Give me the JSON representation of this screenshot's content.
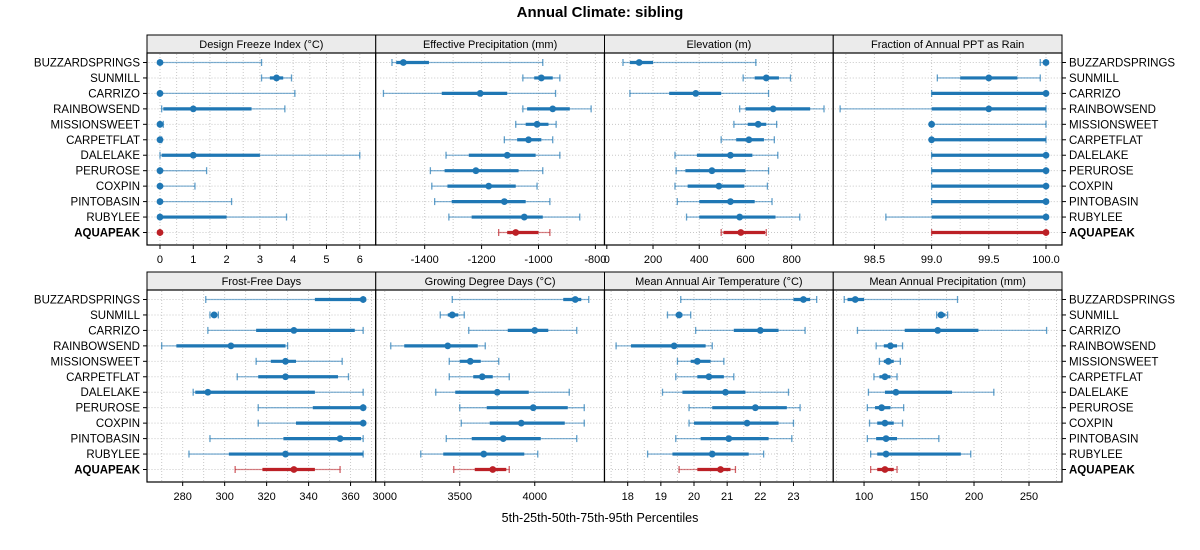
{
  "title": "Annual Climate: sibling",
  "caption": "5th-25th-50th-75th-95th Percentiles",
  "colors": {
    "series": "#1f77b4",
    "highlight": "#bc2026",
    "strip_bg": "#ebebeb",
    "border": "#000000",
    "grid": "#c8c8c8"
  },
  "sites": [
    {
      "name": "BUZZARDSPRINGS",
      "highlight": false
    },
    {
      "name": "SUNMILL",
      "highlight": false
    },
    {
      "name": "CARRIZO",
      "highlight": false
    },
    {
      "name": "RAINBOWSEND",
      "highlight": false
    },
    {
      "name": "MISSIONSWEET",
      "highlight": false
    },
    {
      "name": "CARPETFLAT",
      "highlight": false
    },
    {
      "name": "DALELAKE",
      "highlight": false
    },
    {
      "name": "PERUROSE",
      "highlight": false
    },
    {
      "name": "COXPIN",
      "highlight": false
    },
    {
      "name": "PINTOBASIN",
      "highlight": false
    },
    {
      "name": "RUBYLEE",
      "highlight": false
    },
    {
      "name": "AQUAPEAK",
      "highlight": true
    }
  ],
  "chart_data": {
    "type": "scatter",
    "variant": "percentile-dotplot-trellis",
    "percentiles": [
      5,
      25,
      50,
      75,
      95
    ],
    "legend_position": "bottom-caption",
    "grid": "dotted",
    "panels": [
      {
        "title": "Design Freeze Index (°C)",
        "slug": "design-freeze-index",
        "row": 0,
        "col": 0,
        "domain": [
          -0.39,
          6.48
        ],
        "minor_step": 0.5,
        "tick_values": [
          0,
          1,
          2,
          3,
          4,
          5,
          6
        ],
        "tick_labels": [
          "0",
          "1",
          "2",
          "3",
          "4",
          "5",
          "6"
        ],
        "values": [
          [
            0,
            0,
            0,
            0,
            3.05
          ],
          [
            3.05,
            3.3,
            3.5,
            3.7,
            3.95
          ],
          [
            0,
            0,
            0,
            0,
            4.05
          ],
          [
            0.05,
            0.1,
            1.0,
            2.75,
            3.75
          ],
          [
            0,
            0,
            0,
            0,
            0.1
          ],
          [
            0,
            0,
            0,
            0,
            0.05
          ],
          [
            0,
            0.05,
            1.0,
            3.0,
            6.0
          ],
          [
            0,
            0,
            0,
            0,
            1.4
          ],
          [
            0,
            0,
            0,
            0,
            1.05
          ],
          [
            0,
            0,
            0,
            0,
            2.15
          ],
          [
            0,
            0,
            0,
            2.0,
            3.8
          ],
          [
            0,
            0,
            0,
            0,
            0
          ]
        ]
      },
      {
        "title": "Effective Precipitation (mm)",
        "slug": "effective-precipitation",
        "row": 0,
        "col": 1,
        "domain": [
          -1572,
          -768
        ],
        "minor_step": 100,
        "tick_values": [
          -1400,
          -1200,
          -1000,
          -800
        ],
        "tick_labels": [
          "-1400",
          "-1200",
          "-1000",
          "-800"
        ],
        "values": [
          [
            -1515,
            -1500,
            -1475,
            -1385,
            -985
          ],
          [
            -1055,
            -1015,
            -990,
            -950,
            -925
          ],
          [
            -1545,
            -1340,
            -1205,
            -1110,
            -940
          ],
          [
            -1055,
            -1040,
            -950,
            -890,
            -815
          ],
          [
            -1080,
            -1045,
            -1005,
            -965,
            -938
          ],
          [
            -1120,
            -1075,
            -1035,
            -990,
            -950
          ],
          [
            -1325,
            -1245,
            -1110,
            -1010,
            -925
          ],
          [
            -1380,
            -1330,
            -1220,
            -1070,
            -985
          ],
          [
            -1375,
            -1320,
            -1175,
            -1080,
            -1005
          ],
          [
            -1365,
            -1305,
            -1120,
            -1045,
            -960
          ],
          [
            -1315,
            -1235,
            -1050,
            -985,
            -855
          ],
          [
            -1140,
            -1110,
            -1080,
            -1000,
            -960
          ]
        ]
      },
      {
        "title": "Elevation (m)",
        "slug": "elevation",
        "row": 0,
        "col": 2,
        "domain": [
          -10,
          980
        ],
        "minor_step": 100,
        "tick_values": [
          0,
          200,
          400,
          600,
          800
        ],
        "tick_labels": [
          "0",
          "200",
          "400",
          "600",
          "800"
        ],
        "values": [
          [
            70,
            100,
            140,
            200,
            645
          ],
          [
            590,
            640,
            690,
            745,
            795
          ],
          [
            100,
            270,
            385,
            495,
            700
          ],
          [
            575,
            600,
            720,
            880,
            940
          ],
          [
            550,
            610,
            655,
            690,
            735
          ],
          [
            495,
            560,
            615,
            680,
            725
          ],
          [
            295,
            390,
            535,
            630,
            740
          ],
          [
            300,
            340,
            455,
            600,
            700
          ],
          [
            295,
            350,
            485,
            595,
            695
          ],
          [
            305,
            400,
            535,
            640,
            715
          ],
          [
            345,
            400,
            575,
            730,
            835
          ],
          [
            495,
            505,
            580,
            685,
            690
          ]
        ]
      },
      {
        "title": "Fraction of Annual PPT as Rain",
        "slug": "fraction-ppt-as-rain",
        "row": 0,
        "col": 3,
        "domain": [
          98.14,
          100.14
        ],
        "minor_step": 0.25,
        "tick_values": [
          98.5,
          99.0,
          99.5,
          100.0
        ],
        "tick_labels": [
          "98.5",
          "99.0",
          "99.5",
          "100.0"
        ],
        "values": [
          [
            99.95,
            99.98,
            100,
            100,
            100
          ],
          [
            99.05,
            99.25,
            99.5,
            99.75,
            99.95
          ],
          [
            99.0,
            99.0,
            100,
            100,
            100
          ],
          [
            98.2,
            99.0,
            99.5,
            100,
            100
          ],
          [
            99.0,
            99.0,
            99.0,
            99.0,
            100
          ],
          [
            99.0,
            99.0,
            99.0,
            100,
            100
          ],
          [
            99.0,
            99.0,
            100,
            100,
            100
          ],
          [
            99.0,
            99.0,
            100,
            100,
            100
          ],
          [
            99.0,
            99.0,
            100,
            100,
            100
          ],
          [
            99.0,
            99.0,
            100,
            100,
            100
          ],
          [
            98.6,
            99.0,
            100,
            100,
            100
          ],
          [
            99.0,
            99.0,
            100,
            100,
            100
          ]
        ]
      },
      {
        "title": "Frost-Free Days",
        "slug": "frost-free-days",
        "row": 1,
        "col": 0,
        "domain": [
          263,
          372
        ],
        "minor_step": 10,
        "tick_values": [
          280,
          300,
          320,
          340,
          360
        ],
        "tick_labels": [
          "280",
          "300",
          "320",
          "340",
          "360"
        ],
        "values": [
          [
            291,
            343,
            366,
            366,
            366
          ],
          [
            293,
            294,
            295,
            296,
            297
          ],
          [
            292,
            315,
            333,
            362,
            366
          ],
          [
            270,
            277,
            303,
            329,
            330
          ],
          [
            315,
            322,
            329,
            334,
            356
          ],
          [
            306,
            316,
            329,
            354,
            359
          ],
          [
            285,
            286,
            292,
            343,
            366
          ],
          [
            316,
            342,
            366,
            366,
            366
          ],
          [
            316,
            334,
            366,
            366,
            366
          ],
          [
            293,
            328,
            355,
            365,
            366
          ],
          [
            283,
            302,
            329,
            366,
            366
          ],
          [
            305,
            318,
            333,
            343,
            355
          ]
        ]
      },
      {
        "title": "Growing Degree Days (°C)",
        "slug": "growing-degree-days",
        "row": 1,
        "col": 1,
        "domain": [
          2940,
          4465
        ],
        "minor_step": 250,
        "tick_values": [
          3000,
          3500,
          4000
        ],
        "tick_labels": [
          "3000",
          "3500",
          "4000"
        ],
        "values": [
          [
            3450,
            4190,
            4270,
            4310,
            4360
          ],
          [
            3370,
            3420,
            3450,
            3490,
            3530
          ],
          [
            3560,
            3820,
            4000,
            4090,
            4280
          ],
          [
            3040,
            3130,
            3420,
            3620,
            3670
          ],
          [
            3430,
            3500,
            3570,
            3640,
            3760
          ],
          [
            3430,
            3590,
            3650,
            3720,
            3830
          ],
          [
            3340,
            3470,
            3750,
            3960,
            4230
          ],
          [
            3500,
            3680,
            3990,
            4220,
            4330
          ],
          [
            3510,
            3700,
            3910,
            4200,
            4330
          ],
          [
            3410,
            3580,
            3790,
            4040,
            4280
          ],
          [
            3240,
            3390,
            3660,
            3930,
            4020
          ],
          [
            3460,
            3600,
            3720,
            3810,
            3830
          ]
        ]
      },
      {
        "title": "Mean Annual Air Temperature (°C)",
        "slug": "mean-annual-air-temperature",
        "row": 1,
        "col": 2,
        "domain": [
          17.3,
          24.2
        ],
        "minor_step": 0.5,
        "tick_values": [
          18,
          19,
          20,
          21,
          22,
          23
        ],
        "tick_labels": [
          "18",
          "19",
          "20",
          "21",
          "22",
          "23"
        ],
        "values": [
          [
            19.6,
            23.0,
            23.3,
            23.5,
            23.7
          ],
          [
            19.2,
            19.45,
            19.55,
            19.65,
            19.9
          ],
          [
            20.05,
            21.2,
            22.0,
            22.55,
            23.35
          ],
          [
            17.65,
            18.1,
            19.4,
            20.35,
            20.55
          ],
          [
            19.5,
            19.9,
            20.1,
            20.5,
            20.9
          ],
          [
            19.45,
            20.1,
            20.45,
            20.9,
            21.2
          ],
          [
            19.05,
            19.65,
            20.95,
            21.55,
            22.85
          ],
          [
            19.85,
            20.55,
            21.85,
            22.8,
            23.2
          ],
          [
            19.85,
            20.0,
            21.6,
            22.55,
            23.0
          ],
          [
            19.45,
            20.2,
            21.05,
            22.25,
            22.95
          ],
          [
            18.6,
            19.35,
            20.55,
            21.65,
            22.1
          ],
          [
            19.55,
            20.1,
            20.8,
            21.1,
            21.25
          ]
        ]
      },
      {
        "title": "Mean Annual Precipitation (mm)",
        "slug": "mean-annual-precipitation",
        "row": 1,
        "col": 3,
        "domain": [
          72,
          280
        ],
        "minor_step": 25,
        "tick_values": [
          100,
          150,
          200,
          250
        ],
        "tick_labels": [
          "100",
          "150",
          "200",
          "250"
        ],
        "values": [
          [
            82,
            85,
            92,
            100,
            185
          ],
          [
            166,
            168,
            170,
            174,
            176
          ],
          [
            94,
            137,
            167,
            204,
            266
          ],
          [
            111,
            118,
            124,
            130,
            135
          ],
          [
            114,
            118,
            122,
            127,
            133
          ],
          [
            109,
            114,
            119,
            124,
            130
          ],
          [
            104,
            119,
            129,
            180,
            218
          ],
          [
            103,
            110,
            116,
            124,
            136
          ],
          [
            105,
            112,
            119,
            127,
            135
          ],
          [
            103,
            111,
            120,
            130,
            168
          ],
          [
            106,
            112,
            120,
            188,
            197
          ],
          [
            106,
            112,
            119,
            127,
            130
          ]
        ]
      }
    ]
  }
}
